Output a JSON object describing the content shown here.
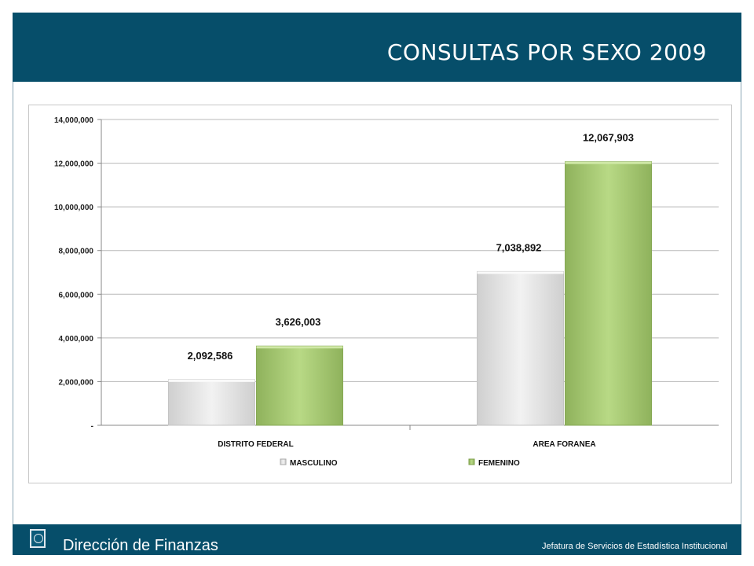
{
  "header": {
    "title": "CONSULTAS POR SEXO 2009"
  },
  "footer": {
    "left_text": "Dirección de Finanzas",
    "right_text": "Jefatura de Servicios de Estadística Institucional",
    "logo_icon": "issste-logo-icon"
  },
  "colors": {
    "header_bg": "#064e6a",
    "masculino": "#e3e3e3",
    "femenino": "#a8cc74"
  },
  "chart_data": {
    "type": "bar",
    "title": "CONSULTAS POR SEXO 2009",
    "xlabel": "",
    "ylabel": "",
    "categories": [
      "DISTRITO FEDERAL",
      "AREA FORANEA"
    ],
    "series": [
      {
        "name": "MASCULINO",
        "values": [
          2092586,
          7038892
        ],
        "labels": [
          "2,092,586",
          "7,038,892"
        ],
        "color": "#e3e3e3"
      },
      {
        "name": "FEMENINO",
        "values": [
          3626003,
          12067903
        ],
        "labels": [
          "3,626,003",
          "12,067,903"
        ],
        "color": "#a8cc74"
      }
    ],
    "ylim": [
      0,
      14000000
    ],
    "yticks": [
      0,
      2000000,
      4000000,
      6000000,
      8000000,
      10000000,
      12000000,
      14000000
    ],
    "ytick_labels": [
      "-",
      "2,000,000",
      "4,000,000",
      "6,000,000",
      "8,000,000",
      "10,000,000",
      "12,000,000",
      "14,000,000"
    ],
    "grid": true,
    "legend_position": "bottom"
  }
}
